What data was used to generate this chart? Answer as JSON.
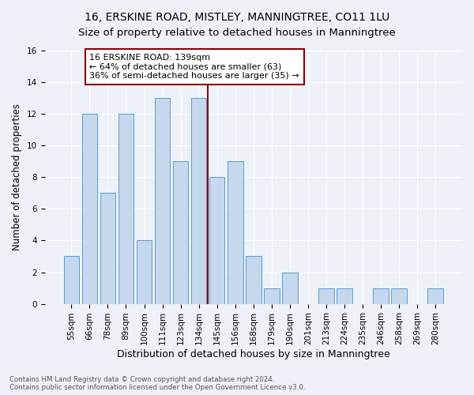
{
  "title": "16, ERSKINE ROAD, MISTLEY, MANNINGTREE, CO11 1LU",
  "subtitle": "Size of property relative to detached houses in Manningtree",
  "xlabel": "Distribution of detached houses by size in Manningtree",
  "ylabel": "Number of detached properties",
  "categories": [
    "55sqm",
    "66sqm",
    "78sqm",
    "89sqm",
    "100sqm",
    "111sqm",
    "123sqm",
    "134sqm",
    "145sqm",
    "156sqm",
    "168sqm",
    "179sqm",
    "190sqm",
    "201sqm",
    "213sqm",
    "224sqm",
    "235sqm",
    "246sqm",
    "258sqm",
    "269sqm",
    "280sqm"
  ],
  "values": [
    3,
    12,
    7,
    12,
    4,
    13,
    9,
    13,
    8,
    9,
    3,
    1,
    2,
    0,
    1,
    1,
    0,
    1,
    1,
    0,
    1
  ],
  "bar_color": "#c5d8ed",
  "bar_edge_color": "#5b9bd5",
  "vline_color": "#8b0000",
  "annotation_text": "16 ERSKINE ROAD: 139sqm\n← 64% of detached houses are smaller (63)\n36% of semi-detached houses are larger (35) →",
  "annotation_box_edge": "#8b0000",
  "ylim": [
    0,
    16
  ],
  "yticks": [
    0,
    2,
    4,
    6,
    8,
    10,
    12,
    14,
    16
  ],
  "title_fontsize": 10,
  "xlabel_fontsize": 9,
  "ylabel_fontsize": 8.5,
  "tick_fontsize": 7.5,
  "annotation_fontsize": 8,
  "footer_line1": "Contains HM Land Registry data © Crown copyright and database right 2024.",
  "footer_line2": "Contains public sector information licensed under the Open Government Licence v3.0.",
  "bg_color": "#eef2f8",
  "plot_bg_color": "#eef2f8",
  "grid_color": "#ffffff"
}
